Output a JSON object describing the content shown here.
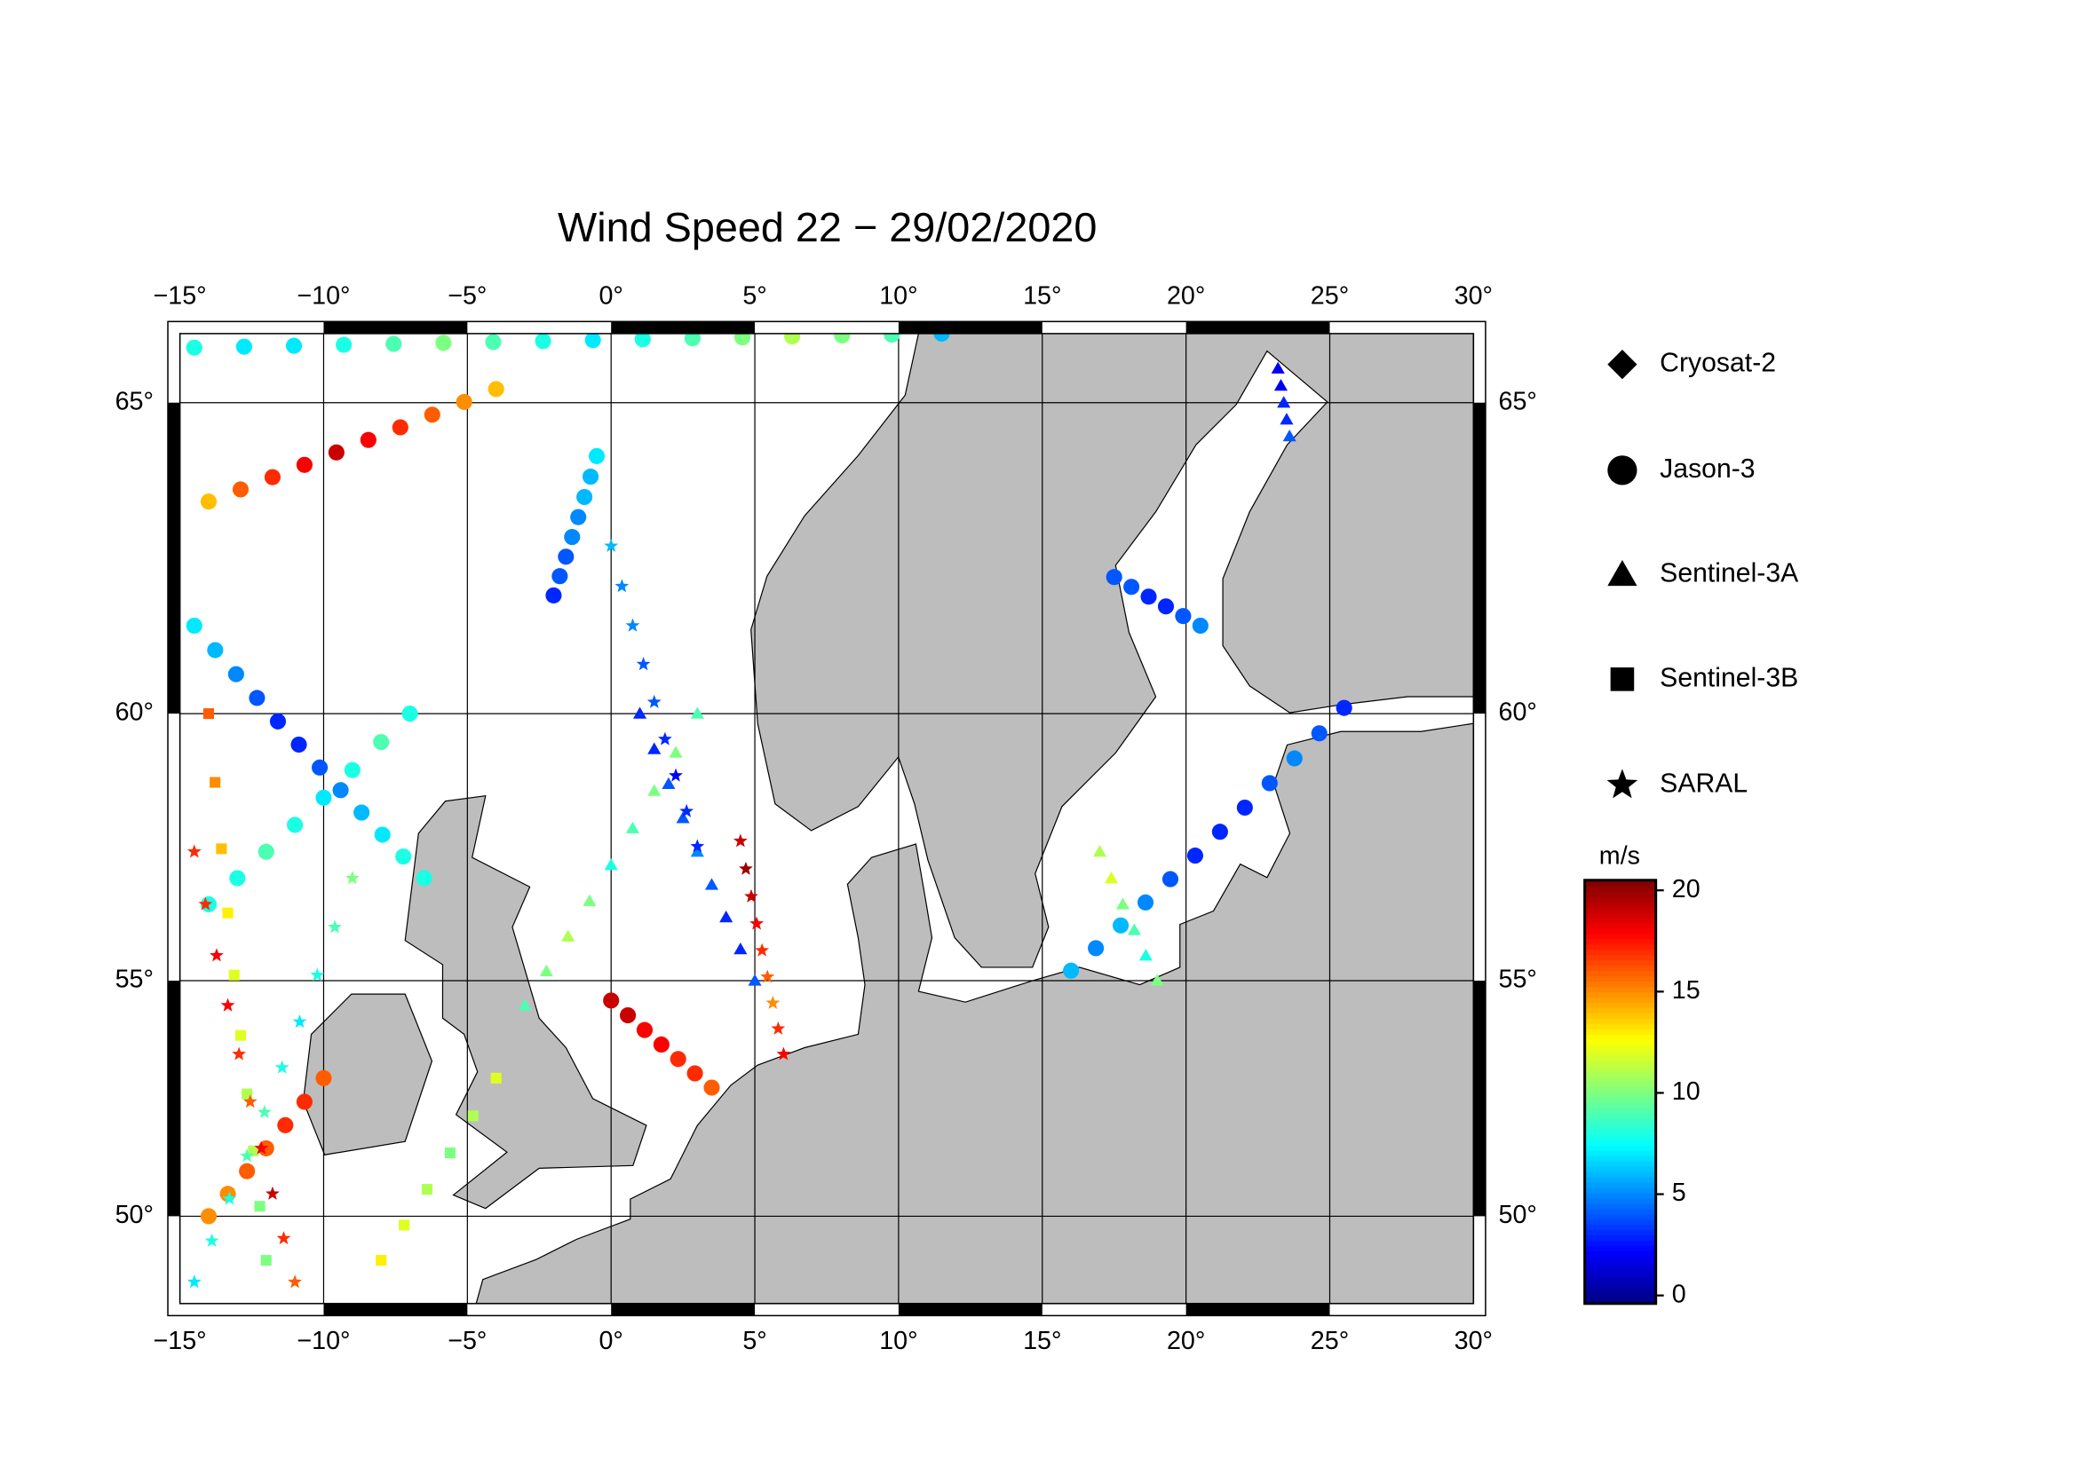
{
  "title": "Wind Speed 22 − 29/02/2020",
  "map": {
    "lon_range": [
      -15,
      30
    ],
    "lat_range": [
      48,
      66
    ],
    "lon_ticks": [
      {
        "value": -15,
        "label": "−15°"
      },
      {
        "value": -10,
        "label": "−10°"
      },
      {
        "value": -5,
        "label": "−5°"
      },
      {
        "value": 0,
        "label": "0°"
      },
      {
        "value": 5,
        "label": "5°"
      },
      {
        "value": 10,
        "label": "10°"
      },
      {
        "value": 15,
        "label": "15°"
      },
      {
        "value": 20,
        "label": "20°"
      },
      {
        "value": 25,
        "label": "25°"
      },
      {
        "value": 30,
        "label": "30°"
      }
    ],
    "lat_ticks": [
      {
        "value": 50,
        "label": "50°"
      },
      {
        "value": 55,
        "label": "55°"
      },
      {
        "value": 60,
        "label": "60°"
      },
      {
        "value": 65,
        "label": "65°"
      }
    ]
  },
  "legend": [
    {
      "name": "Cryosat-2",
      "marker": "diamond"
    },
    {
      "name": "Jason-3",
      "marker": "circle"
    },
    {
      "name": "Sentinel-3A",
      "marker": "triangle"
    },
    {
      "name": "Sentinel-3B",
      "marker": "square"
    },
    {
      "name": "SARAL",
      "marker": "star"
    }
  ],
  "colorbar": {
    "title": "m/s",
    "range": [
      -0.4,
      20.5
    ],
    "ticks": [
      0,
      5,
      10,
      15,
      20
    ]
  },
  "tracks": [
    {
      "marker": "circle",
      "start": [
        -14.5,
        61.5
      ],
      "end": [
        -6.5,
        57.0
      ],
      "values": [
        7,
        6,
        5,
        4,
        3,
        3,
        4,
        5,
        6,
        7,
        8,
        8
      ]
    },
    {
      "marker": "circle",
      "start": [
        -14,
        63.5
      ],
      "end": [
        -4,
        65.2
      ],
      "values": [
        14,
        16,
        17,
        18,
        19,
        18,
        17,
        16,
        15,
        14
      ]
    },
    {
      "marker": "circle",
      "start": [
        -14.5,
        65.8
      ],
      "end": [
        11.5,
        66.0
      ],
      "values": [
        8,
        7,
        7,
        8,
        9,
        10,
        9,
        8,
        7,
        8,
        9,
        10,
        11,
        10,
        9,
        6
      ]
    },
    {
      "marker": "circle",
      "start": [
        -14,
        50
      ],
      "end": [
        -10,
        53
      ],
      "values": [
        15,
        15,
        16,
        16,
        17,
        17,
        16
      ]
    },
    {
      "marker": "circle",
      "start": [
        0,
        54.6
      ],
      "end": [
        3.5,
        52.8
      ],
      "values": [
        19,
        19,
        18,
        18,
        17,
        17,
        16
      ]
    },
    {
      "marker": "circle",
      "start": [
        -2,
        62.0
      ],
      "end": [
        -0.5,
        64.2
      ],
      "values": [
        3,
        4,
        4,
        5,
        5,
        6,
        6,
        7
      ]
    },
    {
      "marker": "circle",
      "start": [
        16,
        55.2
      ],
      "end": [
        25.5,
        60.1
      ],
      "values": [
        6,
        5,
        6,
        5,
        4,
        3,
        3,
        3,
        4,
        5,
        4,
        3
      ]
    },
    {
      "marker": "circle",
      "start": [
        17.5,
        62.3
      ],
      "end": [
        20.5,
        61.5
      ],
      "values": [
        4,
        4,
        3,
        3,
        4,
        5
      ]
    },
    {
      "marker": "circle",
      "start": [
        -14,
        56.5
      ],
      "end": [
        -7,
        60.0
      ],
      "values": [
        8,
        8,
        9,
        8,
        7,
        8,
        9,
        8
      ]
    },
    {
      "marker": "triangle",
      "start": [
        1,
        60
      ],
      "end": [
        5,
        55
      ],
      "values": [
        3,
        3,
        4,
        4,
        5,
        4,
        3,
        3,
        4
      ]
    },
    {
      "marker": "triangle",
      "start": [
        3,
        60
      ],
      "end": [
        -3,
        54.5
      ],
      "values": [
        9,
        10,
        10,
        9,
        8,
        10,
        11,
        10,
        9
      ]
    },
    {
      "marker": "triangle",
      "start": [
        23.2,
        65.5
      ],
      "end": [
        23.6,
        64.5
      ],
      "values": [
        2,
        2,
        3,
        3,
        4
      ]
    },
    {
      "marker": "triangle",
      "start": [
        17,
        57.5
      ],
      "end": [
        19,
        55
      ],
      "values": [
        11,
        12,
        10,
        9,
        8,
        10
      ]
    },
    {
      "marker": "square",
      "start": [
        -14,
        60
      ],
      "end": [
        -12,
        49
      ],
      "values": [
        16,
        15,
        14,
        13,
        12,
        12,
        11,
        11,
        10,
        10
      ]
    },
    {
      "marker": "square",
      "start": [
        -8,
        49
      ],
      "end": [
        -4,
        53
      ],
      "values": [
        13,
        12,
        11,
        10,
        11,
        12
      ]
    },
    {
      "marker": "star",
      "start": [
        3,
        57.6
      ],
      "end": [
        0,
        62.8
      ],
      "values": [
        3,
        3,
        2,
        3,
        4,
        4,
        5,
        5,
        6
      ]
    },
    {
      "marker": "star",
      "start": [
        4.5,
        57.7
      ],
      "end": [
        6,
        53.5
      ],
      "values": [
        19,
        20,
        19,
        18,
        17,
        16,
        15,
        17,
        18
      ]
    },
    {
      "marker": "star",
      "start": [
        -14.5,
        57.5
      ],
      "end": [
        -11,
        48.5
      ],
      "values": [
        17,
        17,
        18,
        18,
        17,
        16,
        18,
        19,
        17,
        16
      ]
    },
    {
      "marker": "star",
      "start": [
        -14.5,
        48.5
      ],
      "end": [
        -9,
        57
      ],
      "values": [
        7,
        8,
        8,
        9,
        9,
        8,
        7,
        8,
        9,
        10
      ]
    }
  ]
}
